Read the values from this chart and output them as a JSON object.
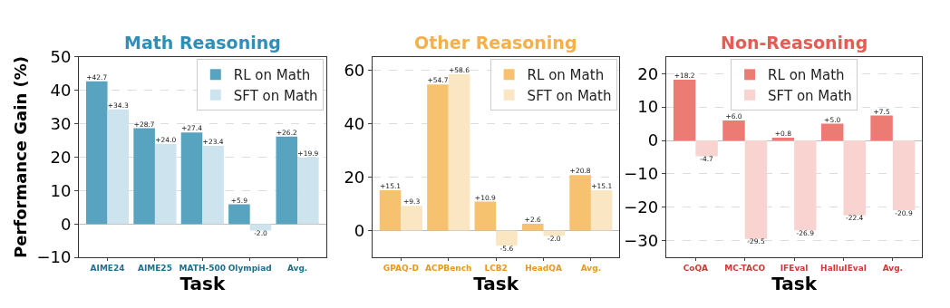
{
  "chart_data": [
    {
      "type": "bar",
      "title": "Math Reasoning",
      "xlabel": "Task",
      "ylabel": "Performance Gain (%)",
      "categories": [
        "AIME24",
        "AIME25",
        "MATH-500",
        "Olympiad",
        "Avg."
      ],
      "ylim": [
        -10,
        50
      ],
      "yticks": [
        -10,
        0,
        10,
        20,
        30,
        40,
        50
      ],
      "grid": "y",
      "legend": "top right",
      "series": [
        {
          "name": "RL on Math",
          "color": "#58a4c0",
          "values": [
            42.7,
            28.7,
            27.4,
            5.9,
            26.2
          ],
          "value_labels": [
            "+42.7",
            "+28.7",
            "+27.4",
            "+5.9",
            "+26.2"
          ]
        },
        {
          "name": "SFT on Math",
          "color": "#cde4ee",
          "values": [
            34.3,
            24.0,
            23.4,
            -2.0,
            19.9
          ],
          "value_labels": [
            "+34.3",
            "+24.0",
            "+23.4",
            "-2.0",
            "+19.9"
          ]
        }
      ]
    },
    {
      "type": "bar",
      "title": "Other Reasoning",
      "xlabel": "Task",
      "categories": [
        "GPAQ-D",
        "ACPBench",
        "LCB2",
        "HeadQA",
        "Avg."
      ],
      "ylim": [
        -10,
        65
      ],
      "yticks": [
        0,
        20,
        40,
        60
      ],
      "grid": "y",
      "legend": "top right",
      "series": [
        {
          "name": "RL on Math",
          "color": "#f6c26f",
          "values": [
            15.1,
            54.7,
            10.9,
            2.6,
            20.8
          ],
          "value_labels": [
            "+15.1",
            "+54.7",
            "+10.9",
            "+2.6",
            "+20.8"
          ]
        },
        {
          "name": "SFT on Math",
          "color": "#fbe6c4",
          "values": [
            9.3,
            58.6,
            -5.6,
            -2.0,
            15.1
          ],
          "value_labels": [
            "+9.3",
            "+58.6",
            "-5.6",
            "-2.0",
            "+15.1"
          ]
        }
      ]
    },
    {
      "type": "bar",
      "title": "Non-Reasoning",
      "xlabel": "Task",
      "categories": [
        "CoQA",
        "MC-TACO",
        "IFEval",
        "HalluIEval",
        "Avg."
      ],
      "ylim": [
        -35,
        25
      ],
      "yticks": [
        -30,
        -20,
        -10,
        0,
        10,
        20
      ],
      "grid": "y",
      "legend": "top",
      "series": [
        {
          "name": "RL on Math",
          "color": "#ec7b74",
          "values": [
            18.2,
            6.0,
            0.8,
            5.0,
            7.5
          ],
          "value_labels": [
            "+18.2",
            "+6.0",
            "+0.8",
            "+5.0",
            "+7.5"
          ]
        },
        {
          "name": "SFT on Math",
          "color": "#f8d3d0",
          "values": [
            -4.7,
            -29.5,
            -26.9,
            -22.4,
            -20.9
          ],
          "value_labels": [
            "-4.7",
            "-29.5",
            "-26.9",
            "-22.4",
            "-20.9"
          ]
        }
      ]
    }
  ]
}
